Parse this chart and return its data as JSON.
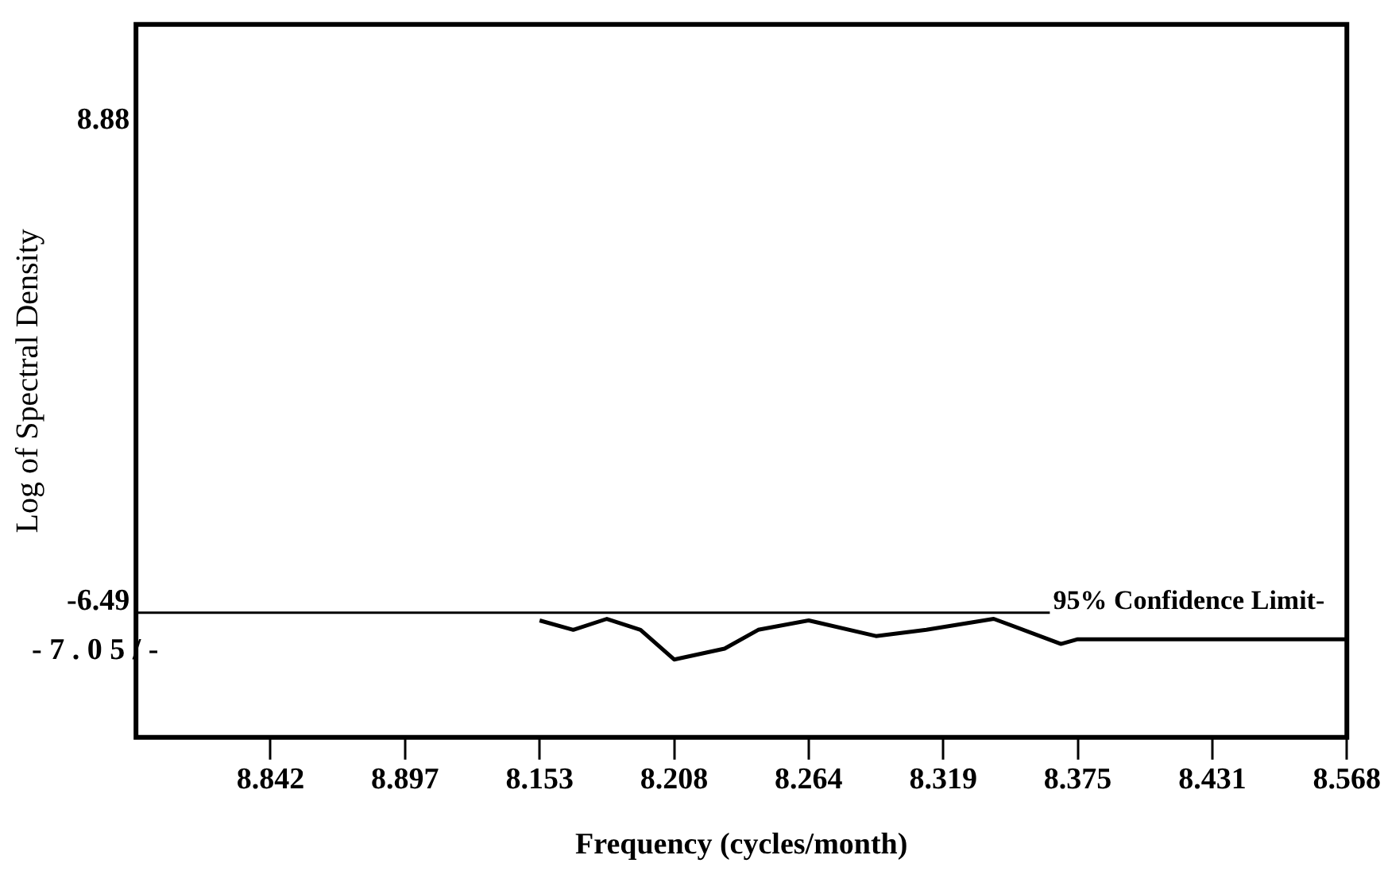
{
  "chart_data": {
    "type": "line",
    "xlabel": "Frequency (cycles/month)",
    "ylabel": "Log of Spectral Density",
    "categories": [
      null,
      null,
      null,
      null,
      null,
      null,
      null,
      null,
      "8.842",
      null,
      null,
      null,
      null,
      null,
      null,
      null,
      "8.897",
      null,
      null,
      null,
      null,
      null,
      null,
      null,
      "8.153",
      null,
      null,
      null,
      null,
      null,
      null,
      null,
      "8.208",
      null,
      null,
      null,
      null,
      null,
      null,
      null,
      "8.264",
      null,
      null,
      null,
      null,
      null,
      null,
      null,
      "8.319",
      null,
      null,
      null,
      null,
      null,
      null,
      null,
      "8.375",
      null,
      null,
      null,
      null,
      null,
      null,
      null,
      "8.431",
      null,
      null,
      null,
      null,
      null,
      null,
      null,
      "8.568"
    ],
    "series": [
      {
        "color": "#000000",
        "values": [
          null,
          null,
          null,
          null,
          null,
          null,
          null,
          null,
          null,
          null,
          null,
          null,
          null,
          null,
          null,
          null,
          null,
          null,
          null,
          null,
          null,
          null,
          null,
          null,
          -7.09,
          null,
          -7.39,
          null,
          -7.04,
          null,
          -7.39,
          null,
          -8.34,
          null,
          null,
          -7.99,
          null,
          -7.39,
          null,
          null,
          -7.09,
          null,
          null,
          null,
          -7.59,
          null,
          null,
          -7.39,
          null,
          null,
          null,
          -7.04,
          null,
          null,
          null,
          -7.84,
          -7.69,
          null,
          null,
          null,
          null,
          null,
          null,
          null,
          null,
          null,
          null,
          null,
          null,
          null,
          null,
          null,
          -7.69
        ]
      }
    ],
    "ylim": [
      -10.83,
      11.97
    ],
    "yticks": [
      8.88,
      -6.49
    ],
    "ref_lines": [
      {
        "axis": "y",
        "value": -6.84,
        "label": "95% Confidence Limit-",
        "color": "#000000"
      }
    ],
    "annotations": [
      "- 7 . 0 5 / -"
    ],
    "grid": false,
    "legend": false,
    "marker": "none",
    "line_style": "solid"
  }
}
